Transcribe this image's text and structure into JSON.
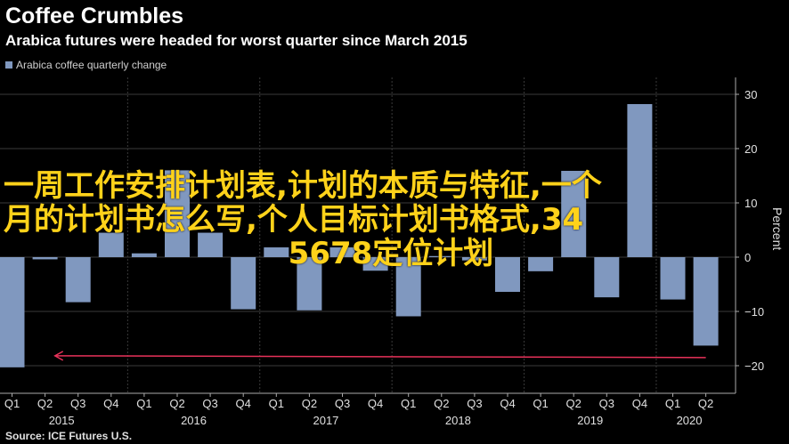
{
  "header": {
    "title": "Coffee Crumbles",
    "subtitle": "Arabica futures were headed for worst quarter since March 2015"
  },
  "legend": {
    "label": "Arabica coffee quarterly change",
    "color": "#8098bf"
  },
  "source": "Source: ICE Futures U.S.",
  "overlay_text": {
    "line1": "一周工作安排计划表,计划的本质与特征,一个",
    "line2": "月的计划书怎么写,个人目标计划书格式,34",
    "line3": "5678定位计划"
  },
  "colors": {
    "bar": "#8098bf",
    "arrow": "#e8325a",
    "grid": "#3a3a3a",
    "axis": "#aaaaaa"
  },
  "chart_data": {
    "type": "bar",
    "title": "Arabica futures were headed for worst quarter since March 2015",
    "ylabel": "Percent",
    "ylim": [
      -22,
      32
    ],
    "yticks": [
      30,
      20,
      10,
      0,
      -10,
      -20
    ],
    "ytick_labels": [
      "30",
      "20",
      "10",
      "0",
      "−10",
      "−20"
    ],
    "quarter_labels": [
      "Q1",
      "Q2",
      "Q3",
      "Q4",
      "Q1",
      "Q2",
      "Q3",
      "Q4",
      "Q1",
      "Q2",
      "Q3",
      "Q4",
      "Q1",
      "Q2",
      "Q3",
      "Q4",
      "Q1",
      "Q2",
      "Q3",
      "Q4",
      "Q1",
      "Q2"
    ],
    "year_labels": [
      {
        "label": "2015",
        "start": 0,
        "end": 3
      },
      {
        "label": "2016",
        "start": 4,
        "end": 7
      },
      {
        "label": "2017",
        "start": 8,
        "end": 11
      },
      {
        "label": "2018",
        "start": 12,
        "end": 15
      },
      {
        "label": "2019",
        "start": 16,
        "end": 19
      },
      {
        "label": "2020",
        "start": 20,
        "end": 21
      }
    ],
    "series": [
      {
        "name": "Arabica coffee quarterly change",
        "values": [
          -20.3,
          -0.4,
          -8.3,
          4.5,
          0.7,
          16.0,
          4.5,
          -9.6,
          1.8,
          -9.8,
          1.8,
          -2.5,
          -10.9,
          0.2,
          -0.6,
          -6.4,
          -2.6,
          15.9,
          -7.4,
          28.2,
          -7.8,
          -16.3
        ]
      }
    ],
    "annotation": {
      "type": "arrow",
      "y": -18.5,
      "from_index": 21,
      "to_index": 1.3,
      "direction": "left"
    }
  }
}
